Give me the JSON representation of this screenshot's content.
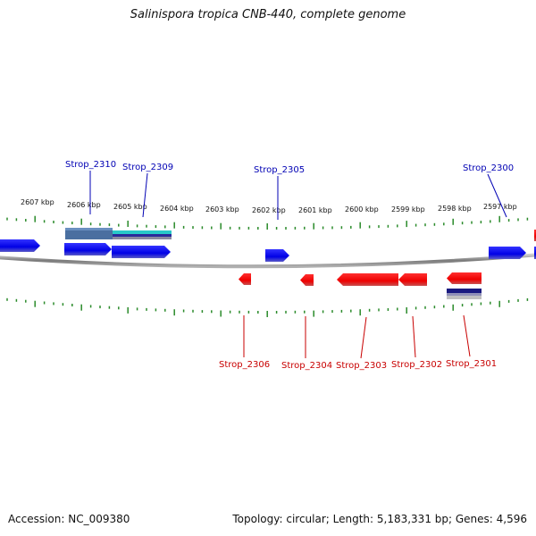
{
  "title": "Salinispora tropica CNB-440, complete genome",
  "footer": {
    "accession": "Accession: NC_009380",
    "topology": "Topology: circular; Length: 5,183,331 bp; Genes: 4,596"
  },
  "colors": {
    "forward_gene": "#0000ee",
    "reverse_gene": "#ee0000",
    "forward_label": "#0000b4",
    "reverse_label": "#c80000",
    "backbone": "#888888",
    "ticks": "#2a8a2a",
    "teal_feature": "#28c8c8",
    "slate_feature": "#4a6fa0",
    "navy_feature": "#1a1a80"
  },
  "kbp_labels": [
    "2607 kbp",
    "2606 kbp",
    "2605 kbp",
    "2604 kbp",
    "2603 kbp",
    "2602 kbp",
    "2601 kbp",
    "2600 kbp",
    "2599 kbp",
    "2598 kbp",
    "2597 kbp"
  ],
  "forward_genes": [
    {
      "label": "Strop_2310"
    },
    {
      "label": "Strop_2309"
    },
    {
      "label": "Strop_2305"
    },
    {
      "label": "Strop_2300"
    }
  ],
  "reverse_genes": [
    {
      "label": "Strop_2306"
    },
    {
      "label": "Strop_2304"
    },
    {
      "label": "Strop_2303"
    },
    {
      "label": "Strop_2302"
    },
    {
      "label": "Strop_2301"
    }
  ]
}
